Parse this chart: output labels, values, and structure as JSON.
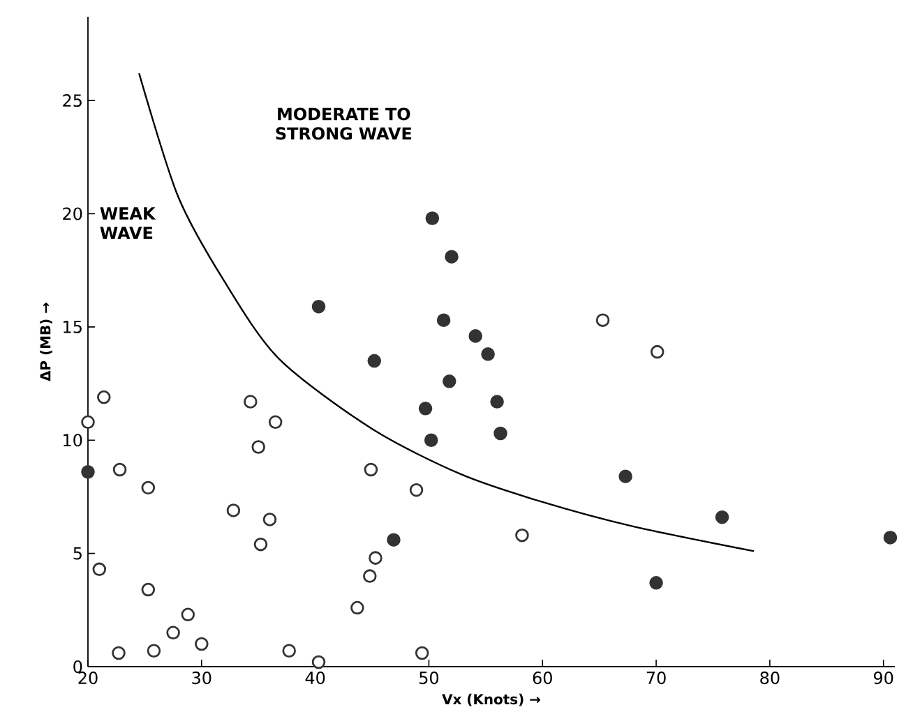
{
  "chart_data": {
    "type": "scatter",
    "xlabel": "Vx (Knots) →",
    "ylabel": "ΔP (MB) →",
    "xlim": [
      20,
      91
    ],
    "ylim": [
      0,
      28.7
    ],
    "xticks": [
      20,
      30,
      40,
      50,
      60,
      70,
      80,
      90
    ],
    "yticks": [
      0,
      5,
      10,
      15,
      20,
      25
    ],
    "grid": false,
    "legend": false,
    "annotations": [
      "MODERATE TO STRONG WAVE",
      "WEAK WAVE"
    ],
    "series": [
      {
        "color": "#333333",
        "marker": "circle",
        "x": [
          50.3,
          52.0,
          40.3,
          51.3,
          54.1,
          55.2,
          45.2,
          51.8,
          56.0,
          49.7,
          56.3,
          50.2,
          20.0,
          67.3,
          75.8,
          90.6,
          70.0,
          46.9
        ],
        "values": [
          19.8,
          18.1,
          15.9,
          15.3,
          14.6,
          13.8,
          13.5,
          12.6,
          11.7,
          11.4,
          10.3,
          10.0,
          8.6,
          8.4,
          6.6,
          5.7,
          3.7,
          5.6
        ]
      },
      {
        "color": "#ffffff",
        "marker": "circle",
        "x": [
          20.0,
          21.4,
          21.0,
          22.8,
          22.7,
          25.3,
          25.3,
          25.8,
          27.5,
          28.8,
          30.0,
          32.8,
          34.3,
          35.0,
          35.2,
          36.0,
          36.5,
          37.7,
          40.3,
          43.7,
          44.9,
          45.3,
          44.8,
          48.9,
          49.4,
          65.3,
          70.1,
          58.2
        ],
        "values": [
          10.8,
          11.9,
          4.3,
          8.7,
          0.6,
          7.9,
          3.4,
          0.7,
          1.5,
          2.3,
          1.0,
          6.9,
          11.7,
          9.7,
          5.4,
          6.5,
          10.8,
          0.7,
          0.2,
          2.6,
          8.7,
          4.8,
          4.0,
          7.8,
          0.6,
          15.3,
          13.9,
          5.8
        ]
      },
      {
        "type": "line",
        "color": "#000000",
        "marker": "none",
        "x": [
          24.5,
          27.9,
          31.9,
          36.8,
          45.0,
          52.8,
          59.8,
          67.9,
          78.6
        ],
        "values": [
          26.2,
          20.8,
          17.1,
          13.6,
          10.5,
          8.5,
          7.3,
          6.2,
          5.1
        ]
      }
    ]
  }
}
